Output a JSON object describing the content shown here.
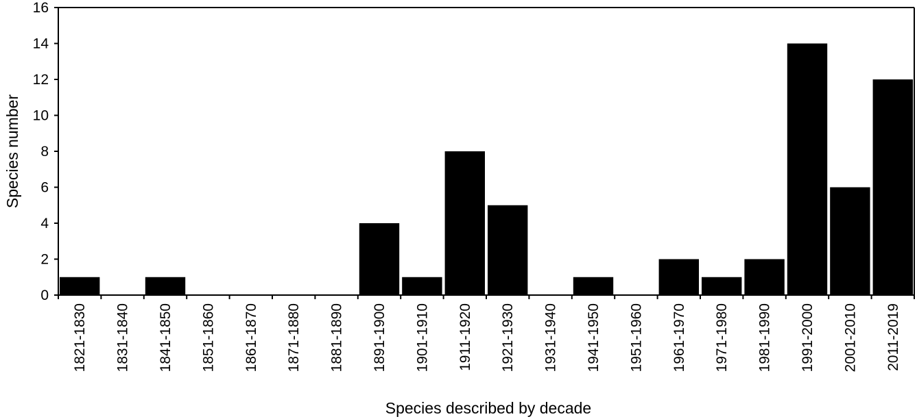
{
  "chart_data": {
    "type": "bar",
    "title": "",
    "xlabel": "Species described by decade",
    "ylabel": "Species number",
    "ylim": [
      0,
      16
    ],
    "yticks": [
      "0",
      "2",
      "4",
      "6",
      "8",
      "10",
      "12",
      "14",
      "16"
    ],
    "categories": [
      "1821-1830",
      "1831-1840",
      "1841-1850",
      "1851-1860",
      "1861-1870",
      "1871-1880",
      "1881-1890",
      "1891-1900",
      "1901-1910",
      "1911-1920",
      "1921-1930",
      "1931-1940",
      "1941-1950",
      "1951-1960",
      "1961-1970",
      "1971-1980",
      "1981-1990",
      "1991-2000",
      "2001-2010",
      "2011-2019"
    ],
    "values": [
      1,
      0,
      1,
      0,
      0,
      0,
      0,
      4,
      1,
      8,
      5,
      0,
      1,
      0,
      2,
      1,
      2,
      14,
      6,
      12
    ],
    "bar_color": "#000000",
    "grid": false,
    "legend": "none"
  }
}
